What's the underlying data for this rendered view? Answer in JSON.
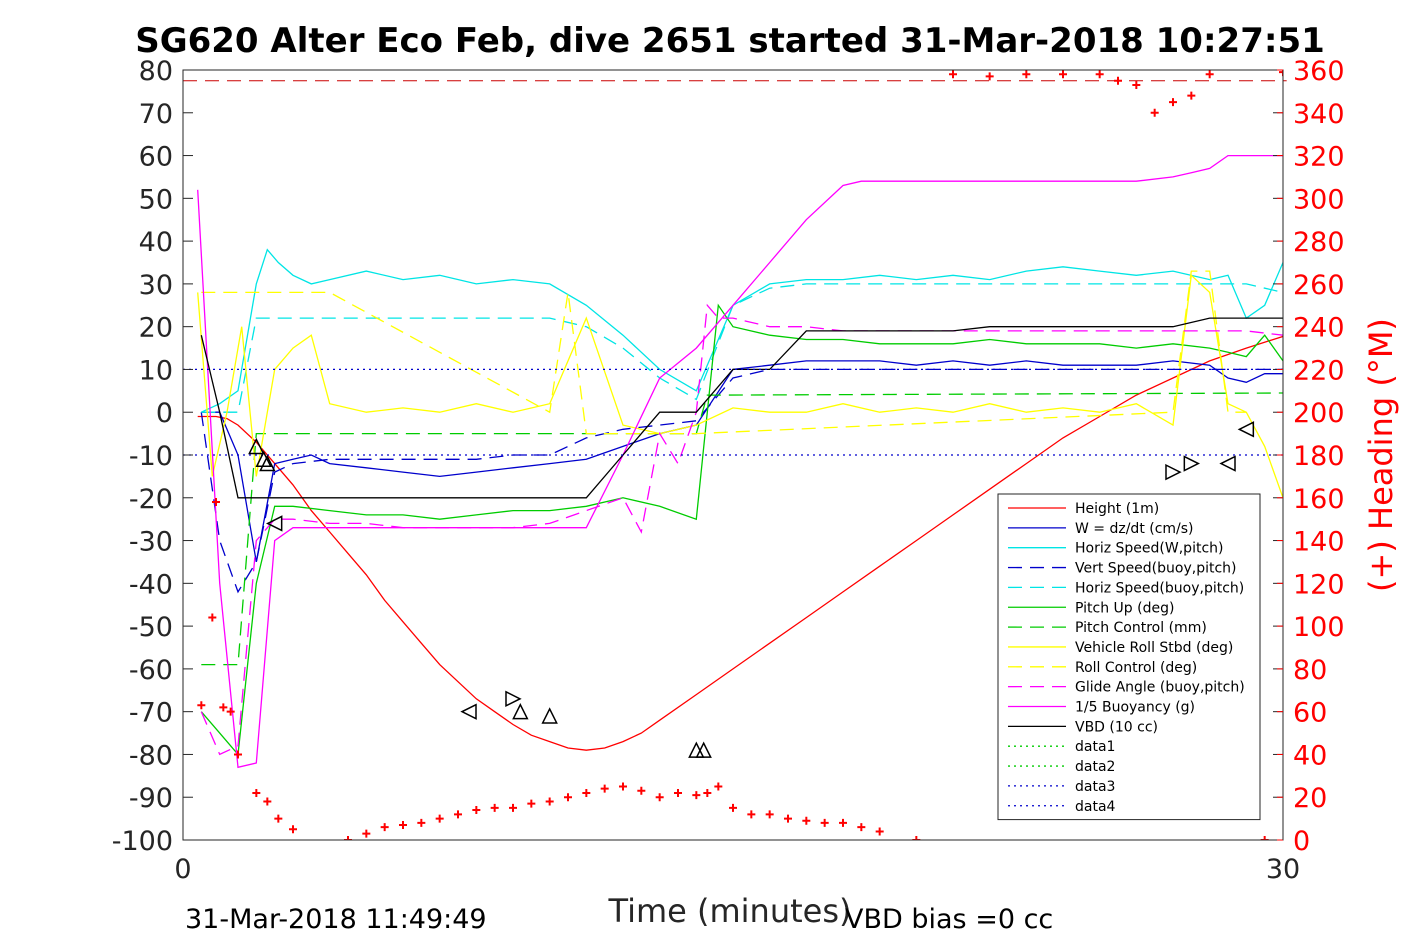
{
  "chart_data": {
    "type": "line",
    "title": "SG620 Alter Eco Feb, dive 2651 started 31-Mar-2018 10:27:51",
    "xlabel": "Time (minutes)",
    "ylabel_left": "",
    "ylabel_right": "(+) Heading (°M)",
    "xlim": [
      0,
      30
    ],
    "ylim_left": [
      -100,
      80
    ],
    "ylim_right": [
      0,
      360
    ],
    "x_ticks": [
      "0",
      "30"
    ],
    "y_ticks_left": [
      "80",
      "70",
      "60",
      "50",
      "40",
      "30",
      "20",
      "10",
      "0",
      "-10",
      "-20",
      "-30",
      "-40",
      "-50",
      "-60",
      "-70",
      "-80",
      "-90",
      "-100"
    ],
    "y_ticks_right": [
      "360",
      "340",
      "320",
      "300",
      "280",
      "260",
      "240",
      "220",
      "200",
      "180",
      "160",
      "140",
      "120",
      "100",
      "80",
      "60",
      "40",
      "20",
      "0"
    ],
    "grid": false,
    "legend_position": "lower-right",
    "footer_left": "31-Mar-2018 11:49:49",
    "footer_right": "VBD bias =0 cc",
    "series": [
      {
        "name": "Height (1m)",
        "color": "#ff0000",
        "style": "solid",
        "x": [
          0.4,
          0.9,
          1.2,
          1.5,
          2.0,
          2.5,
          3.0,
          3.5,
          4.0,
          4.5,
          5.0,
          5.5,
          6.0,
          6.5,
          7.0,
          7.5,
          8.0,
          8.5,
          9.0,
          9.5,
          10.0,
          10.5,
          11.0,
          11.5,
          12.0,
          12.5,
          13.0,
          14.0,
          15.0,
          16.0,
          17.0,
          18.0,
          19.0,
          20.0,
          21.0,
          22.0,
          23.0,
          24.0,
          25.0,
          26.0,
          27.0,
          28.0,
          29.0,
          30.1
        ],
        "y": [
          -1,
          -1,
          -1.5,
          -3,
          -7,
          -12,
          -17,
          -23,
          -28,
          -33,
          -38,
          -44,
          -49,
          -54,
          -59,
          -63,
          -67,
          -70,
          -73,
          -75.5,
          -77,
          -78.5,
          -79,
          -78.5,
          -77,
          -75,
          -72,
          -66,
          -60,
          -54,
          -48,
          -42,
          -36,
          -30,
          -24,
          -18,
          -12,
          -6,
          -1,
          4,
          8,
          12,
          15,
          18
        ]
      },
      {
        "name": "W = dz/dt (cm/s)",
        "color": "#0000cc",
        "style": "solid",
        "x": [
          0.5,
          1.0,
          1.5,
          2.0,
          2.5,
          3.0,
          3.5,
          4.0,
          5.0,
          6.0,
          7.0,
          8.0,
          9.0,
          10.0,
          11.0,
          12.0,
          13.0,
          14.0,
          15.0,
          16.0,
          17.0,
          18.0,
          19.0,
          20.0,
          21.0,
          22.0,
          23.0,
          24.0,
          25.0,
          26.0,
          27.0,
          28.0,
          28.5,
          29.0,
          29.5,
          30.0
        ],
        "y": [
          0,
          0,
          -10,
          -35,
          -12,
          -11,
          -10,
          -12,
          -13,
          -14,
          -15,
          -14,
          -13,
          -12,
          -11,
          -8,
          -5,
          -3,
          10,
          11,
          12,
          12,
          12,
          11,
          12,
          11,
          12,
          11,
          11,
          11,
          12,
          11,
          8,
          7,
          9,
          9
        ]
      },
      {
        "name": "Horiz Speed(W,pitch)",
        "color": "#00e5e5",
        "style": "solid",
        "x": [
          0.5,
          1.0,
          1.5,
          2.0,
          2.3,
          2.6,
          3.0,
          3.5,
          4.0,
          5.0,
          6.0,
          7.0,
          8.0,
          9.0,
          10.0,
          11.0,
          12.0,
          13.0,
          14.0,
          15.0,
          16.0,
          17.0,
          18.0,
          19.0,
          20.0,
          21.0,
          22.0,
          23.0,
          24.0,
          25.0,
          26.0,
          27.0,
          28.0,
          28.5,
          29.0,
          29.5,
          30.0
        ],
        "y": [
          0,
          2,
          5,
          30,
          38,
          35,
          32,
          30,
          31,
          33,
          31,
          32,
          30,
          31,
          30,
          25,
          18,
          10,
          5,
          25,
          30,
          31,
          31,
          32,
          31,
          32,
          31,
          33,
          34,
          33,
          32,
          33,
          31,
          32,
          22,
          25,
          35
        ]
      },
      {
        "name": "Vert Speed(buoy,pitch)",
        "color": "#0000cc",
        "style": "dash",
        "x": [
          0.5,
          1.0,
          1.5,
          2.0,
          2.5,
          3.0,
          4.0,
          5.0,
          6.0,
          7.0,
          8.0,
          9.0,
          10.0,
          11.0,
          12.0,
          13.0,
          14.0,
          15.0,
          16.0,
          17.0,
          18.0,
          19.0,
          20.0,
          21.0,
          22.0,
          23.0,
          24.0,
          25.0,
          26.0,
          27.0,
          28.0,
          29.0,
          30.0
        ],
        "y": [
          0,
          -30,
          -42,
          -35,
          -14,
          -12,
          -11,
          -11,
          -11,
          -11,
          -11,
          -10,
          -10,
          -6,
          -4,
          -3,
          -2,
          8,
          10,
          10,
          10,
          10,
          10,
          10,
          10,
          10,
          10,
          10,
          10,
          10,
          10,
          10,
          10
        ]
      },
      {
        "name": "Horiz Speed(buoy,pitch)",
        "color": "#00e5e5",
        "style": "dash",
        "x": [
          0.5,
          1.0,
          1.5,
          2.0,
          3.0,
          4.0,
          5.0,
          6.0,
          7.0,
          8.0,
          9.0,
          10.0,
          11.0,
          12.0,
          13.0,
          14.0,
          15.0,
          16.0,
          17.0,
          18.0,
          19.0,
          20.0,
          21.0,
          22.0,
          23.0,
          24.0,
          25.0,
          26.0,
          27.0,
          28.0,
          29.0,
          30.0
        ],
        "y": [
          0,
          0,
          0,
          22,
          22,
          22,
          22,
          22,
          22,
          22,
          22,
          22,
          20,
          15,
          8,
          3,
          25,
          29,
          30,
          30,
          30,
          30,
          30,
          30,
          30,
          30,
          30,
          30,
          30,
          30,
          30,
          28
        ]
      },
      {
        "name": "Pitch Up (deg)",
        "color": "#00cc00",
        "style": "solid",
        "x": [
          0.5,
          1.0,
          1.5,
          2.0,
          2.5,
          3.0,
          4.0,
          5.0,
          6.0,
          7.0,
          8.0,
          9.0,
          10.0,
          11.0,
          12.0,
          13.0,
          14.0,
          14.3,
          14.6,
          15.0,
          16.0,
          17.0,
          18.0,
          19.0,
          20.0,
          21.0,
          22.0,
          23.0,
          24.0,
          25.0,
          26.0,
          27.0,
          28.0,
          28.5,
          29.0,
          29.5,
          30.0
        ],
        "y": [
          -70,
          -75,
          -80,
          -40,
          -22,
          -22,
          -23,
          -24,
          -24,
          -25,
          -24,
          -23,
          -23,
          -22,
          -20,
          -22,
          -25,
          0,
          25,
          20,
          18,
          17,
          17,
          16,
          16,
          16,
          17,
          16,
          16,
          16,
          15,
          16,
          15,
          14,
          13,
          18,
          12
        ]
      },
      {
        "name": "Pitch Control (mm)",
        "color": "#00cc00",
        "style": "dash",
        "x": [
          0.5,
          1.0,
          1.5,
          2.0,
          3.0,
          13.0,
          13.5,
          14.0,
          14.3,
          14.6,
          30.0
        ],
        "y": [
          -59,
          -59,
          -59,
          -5,
          -5,
          -5,
          -5,
          -5,
          4,
          4,
          4.5
        ]
      },
      {
        "name": "Vehicle Roll Stbd (deg)",
        "color": "#ffff00",
        "style": "solid",
        "x": [
          0.4,
          0.8,
          1.2,
          1.6,
          2.0,
          2.5,
          3.0,
          3.5,
          4.0,
          5.0,
          6.0,
          7.0,
          8.0,
          9.0,
          10.0,
          11.0,
          12.0,
          13.0,
          14.0,
          15.0,
          16.0,
          17.0,
          18.0,
          19.0,
          20.0,
          21.0,
          22.0,
          23.0,
          24.0,
          25.0,
          26.0,
          27.0,
          27.5,
          28.0,
          28.5,
          29.0,
          29.5,
          30.0
        ],
        "y": [
          28,
          -15,
          0,
          20,
          -15,
          10,
          15,
          18,
          2,
          0,
          1,
          0,
          2,
          0,
          2,
          22,
          -3,
          -5,
          -3,
          1,
          0,
          0,
          2,
          0,
          1,
          0,
          2,
          0,
          1,
          0,
          2,
          -3,
          32,
          28,
          2,
          0,
          -8,
          -20
        ]
      },
      {
        "name": "Roll Control (deg)",
        "color": "#ffff00",
        "style": "dash",
        "x": [
          0.5,
          1.0,
          1.5,
          2.0,
          2.5,
          3.0,
          3.5,
          4.0,
          10.0,
          10.5,
          11.0,
          14.0,
          27.0,
          27.5,
          28.0,
          28.5,
          29.0
        ],
        "y": [
          28,
          28,
          28,
          28,
          28,
          28,
          28,
          28,
          0,
          28,
          -5,
          -5,
          0,
          33,
          33,
          0,
          0
        ]
      },
      {
        "name": "Glide Angle (buoy,pitch)",
        "color": "#ff00ff",
        "style": "dash",
        "x": [
          0.5,
          1.0,
          1.5,
          2.0,
          2.5,
          3.0,
          4.0,
          5.0,
          6.0,
          7.0,
          8.0,
          9.0,
          10.0,
          11.0,
          12.0,
          12.5,
          13.0,
          13.5,
          14.0,
          14.3,
          14.6,
          15.0,
          16.0,
          17.0,
          18.0,
          19.0,
          20.0,
          21.0,
          22.0,
          23.0,
          24.0,
          25.0,
          26.0,
          27.0,
          28.0,
          29.0,
          30.0
        ],
        "y": [
          -70,
          -80,
          -78,
          -30,
          -25,
          -25,
          -26,
          -26,
          -27,
          -27,
          -27,
          -27,
          -26,
          -23,
          -20,
          -28,
          -5,
          -12,
          0,
          25,
          22,
          22,
          20,
          20,
          19,
          19,
          19,
          19,
          19,
          19,
          19,
          19,
          19,
          19,
          19,
          19,
          18
        ]
      },
      {
        "name": "1/5 Buoyancy (g)",
        "color": "#ff00ff",
        "style": "solid",
        "x": [
          0.4,
          1.0,
          1.5,
          2.0,
          2.5,
          3.0,
          10.0,
          11.0,
          12.0,
          13.0,
          14.0,
          15.0,
          16.0,
          17.0,
          18.0,
          18.5,
          19.0,
          20.0,
          21.0,
          22.0,
          23.0,
          24.0,
          25.0,
          26.0,
          27.0,
          27.5,
          28.0,
          28.5,
          29.0,
          30.0
        ],
        "y": [
          52,
          -40,
          -83,
          -82,
          -30,
          -27,
          -27,
          -27,
          -10,
          8,
          15,
          25,
          35,
          45,
          53,
          54,
          54,
          54,
          54,
          54,
          54,
          54,
          54,
          54,
          55,
          56,
          57,
          60,
          60,
          60
        ]
      },
      {
        "name": "VBD (10 cc)",
        "color": "#000000",
        "style": "solid",
        "x": [
          0.5,
          1.0,
          1.5,
          2.0,
          10.0,
          11.0,
          12.0,
          13.0,
          14.0,
          15.0,
          16.0,
          17.0,
          18.0,
          19.0,
          20.0,
          21.0,
          22.0,
          23.0,
          24.0,
          25.0,
          26.0,
          27.0,
          28.0,
          29.0,
          30.0
        ],
        "y": [
          18,
          0,
          -20,
          -20,
          -20,
          -20,
          -10,
          0,
          0,
          10,
          10,
          19,
          19,
          19,
          19,
          19,
          20,
          20,
          20,
          20,
          20,
          20,
          22,
          22,
          22
        ]
      },
      {
        "name": "data1",
        "color": "#00cc00",
        "style": "dot",
        "x": [],
        "y": []
      },
      {
        "name": "data2",
        "color": "#00cc00",
        "style": "dot",
        "x": [],
        "y": []
      },
      {
        "name": "data3",
        "color": "#0000cc",
        "style": "dot",
        "x": [
          0,
          30
        ],
        "y": [
          10,
          10
        ]
      },
      {
        "name": "data4",
        "color": "#0000cc",
        "style": "dot",
        "x": [
          0,
          30
        ],
        "y": [
          -10,
          -10
        ]
      }
    ],
    "heading_points": {
      "name": "(+) Heading (°M)",
      "color": "#ff0000",
      "marker": "+",
      "x": [
        0.5,
        0.8,
        0.9,
        1.1,
        1.3,
        1.5,
        2.0,
        2.3,
        2.6,
        3.0,
        4.5,
        5.0,
        5.5,
        6.0,
        6.5,
        7.0,
        7.5,
        8.0,
        8.5,
        9.0,
        9.5,
        10.0,
        10.5,
        11.0,
        11.5,
        12.0,
        12.5,
        13.0,
        13.5,
        14.0,
        14.3,
        14.6,
        15.0,
        15.5,
        16.0,
        16.5,
        17.0,
        17.5,
        18.0,
        18.5,
        19.0,
        20.0,
        21.0,
        22.0,
        23.0,
        24.0,
        25.0,
        25.5,
        26.0,
        26.5,
        27.0,
        27.5,
        28.0,
        29.5,
        30.0
      ],
      "y": [
        63,
        104,
        158,
        62,
        60,
        40,
        22,
        18,
        10,
        5,
        0,
        3,
        6,
        7,
        8,
        10,
        12,
        14,
        15,
        15,
        17,
        18,
        20,
        22,
        24,
        25,
        23,
        20,
        22,
        21,
        22,
        25,
        15,
        12,
        12,
        10,
        9,
        8,
        8,
        6,
        4,
        0,
        358,
        357,
        358,
        358,
        358,
        355,
        353,
        340,
        345,
        348,
        358,
        0,
        359
      ]
    },
    "markers": {
      "triangles_left": {
        "x": [
          2.5,
          7.8,
          28.5,
          29.0
        ],
        "y": [
          -26,
          -70,
          -12,
          -4
        ]
      },
      "triangles_right": {
        "x": [
          9.0,
          27.0,
          27.5
        ],
        "y": [
          -67,
          -14,
          -12
        ]
      },
      "triangles_up": {
        "x": [
          2.0,
          2.2,
          2.3,
          9.2,
          10.0,
          14.0,
          14.2
        ],
        "y": [
          -8,
          -11,
          -12,
          -70,
          -71,
          -79,
          -79
        ]
      }
    }
  }
}
